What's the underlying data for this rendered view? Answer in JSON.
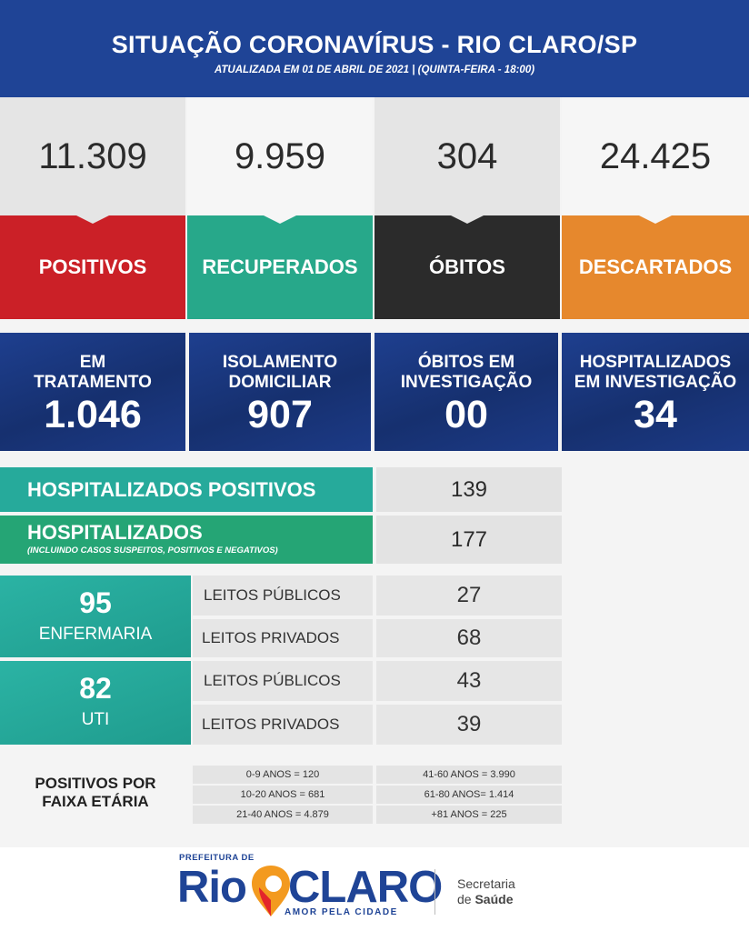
{
  "header": {
    "title": "SITUAÇÃO CORONAVÍRUS - RIO CLARO/SP",
    "subtitle": "ATUALIZADA EM 01 DE ABRIL DE 2021 | (QUINTA-FEIRA - 18:00)"
  },
  "stats": [
    {
      "value": "11.309",
      "label": "POSITIVOS",
      "color": "#cb2027"
    },
    {
      "value": "9.959",
      "label": "RECUPERADOS",
      "color": "#27a88a"
    },
    {
      "value": "304",
      "label": "ÓBITOS",
      "color": "#2b2b2b"
    },
    {
      "value": "24.425",
      "label": "DESCARTADOS",
      "color": "#e6882d"
    }
  ],
  "blue_boxes": [
    {
      "line1": "EM",
      "line2": "TRATAMENTO",
      "value": "1.046"
    },
    {
      "line1": "ISOLAMENTO",
      "line2": "DOMICILIAR",
      "value": "907"
    },
    {
      "line1": "ÓBITOS EM",
      "line2": "INVESTIGAÇÃO",
      "value": "00"
    },
    {
      "line1": "HOSPITALIZADOS",
      "line2": "EM INVESTIGAÇÃO",
      "value": "34"
    }
  ],
  "hospitalized": {
    "positive_label": "HOSPITALIZADOS POSITIVOS",
    "positive_value": "139",
    "all_label": "HOSPITALIZADOS",
    "all_note": "(INCLUINDO CASOS SUSPEITOS, POSITIVOS E NEGATIVOS)",
    "all_value": "177"
  },
  "beds": {
    "enfermaria": {
      "total": "95",
      "label": "ENFERMARIA",
      "rows": [
        {
          "label": "LEITOS PÚBLICOS",
          "value": "27"
        },
        {
          "label": "LEITOS PRIVADOS",
          "value": "68"
        }
      ]
    },
    "uti": {
      "total": "82",
      "label": "UTI",
      "rows": [
        {
          "label": "LEITOS PÚBLICOS",
          "value": "43"
        },
        {
          "label": "LEITOS PRIVADOS",
          "value": "39"
        }
      ]
    }
  },
  "age": {
    "title_line1": "POSITIVOS POR",
    "title_line2": "FAIXA ETÁRIA",
    "left": [
      "0-9 ANOS = 120",
      "10-20 ANOS = 681",
      "21-40 ANOS = 4.879"
    ],
    "right": [
      "41-60 ANOS = 3.990",
      "61-80 ANOS= 1.414",
      "+81 ANOS = 225"
    ]
  },
  "footer": {
    "prefeitura": "PREFEITURA DE",
    "logo_rio": "Rio",
    "logo_claro": "CLARO",
    "slogan": "AMOR PELA CIDADE",
    "secretaria": "Secretaria",
    "de": "de ",
    "saude": "Saúde"
  }
}
